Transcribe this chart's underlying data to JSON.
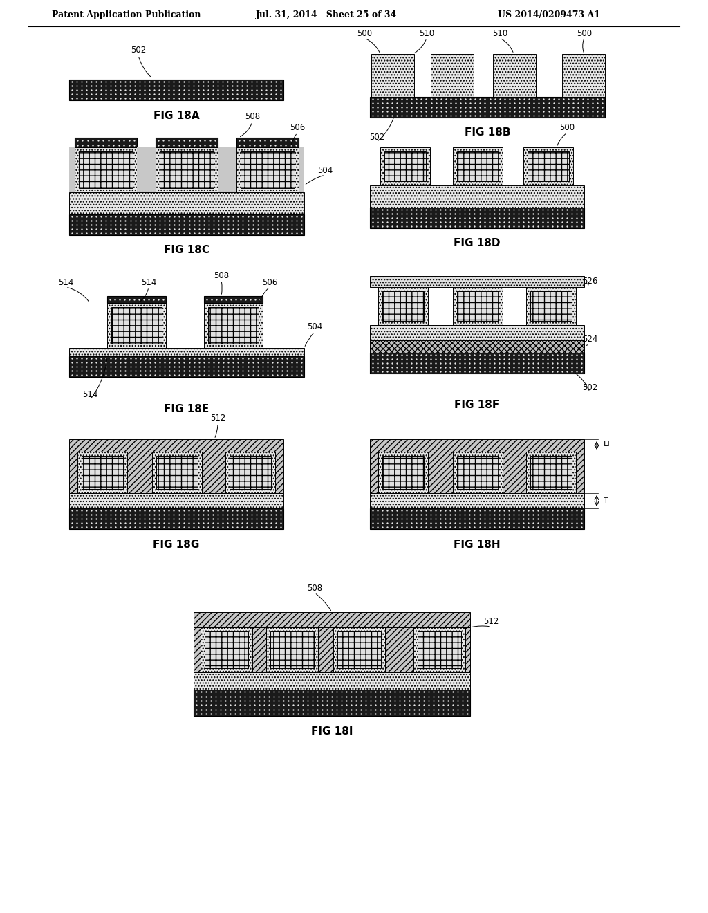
{
  "header_left": "Patent Application Publication",
  "header_mid": "Jul. 31, 2014   Sheet 25 of 34",
  "header_right": "US 2014/0209473 A1",
  "bg_color": "#ffffff"
}
